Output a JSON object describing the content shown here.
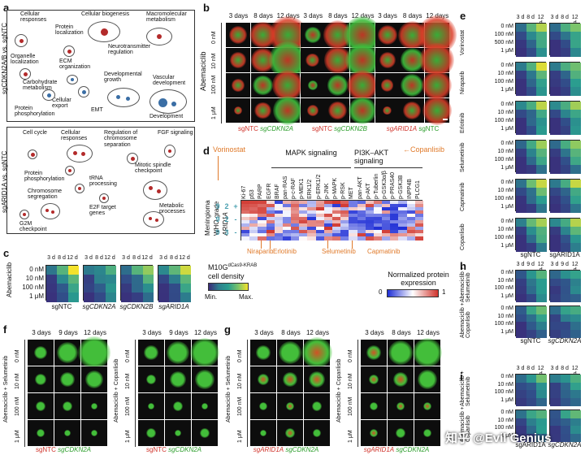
{
  "panels": {
    "a": "a",
    "b": "b",
    "c": "c",
    "d": "d",
    "e": "e",
    "f": "f",
    "g": "g",
    "h": "h",
    "i": "i"
  },
  "panel_a": {
    "top_side_label": "sgCDKN2A/B vs. sgNTC",
    "bottom_side_label": "sgARID1A vs. sgNTC",
    "top_terms": [
      "Cellular responses",
      "Protein localization",
      "Cellular biogenesis",
      "Macromolecular metabolism",
      "Organelle localization",
      "ECM organization",
      "Neurotransmitter regulation",
      "Carbohydrate metabolism",
      "Developmental growth",
      "Cellular export",
      "Vascular development",
      "Protein phosphorylation",
      "EMT",
      "Development"
    ],
    "bottom_terms": [
      "Cell cycle",
      "Cellular responses",
      "Regulation of chromosome separation",
      "FGF signaling",
      "Protein phosphorylation",
      "tRNA processing",
      "Mitotic spindle checkpoint",
      "Chromosome segregation",
      "E2F target genes",
      "Metabolic processes",
      "G2M checkpoint"
    ]
  },
  "panel_b": {
    "timepoints": [
      "3 days",
      "8 days",
      "12 days",
      "3 days",
      "8 days",
      "12 days",
      "3 days",
      "8 days",
      "12 days"
    ],
    "drug": "Abemaciclib",
    "doses": [
      "0 nM",
      "10 nM",
      "100 nM",
      "1 μM"
    ],
    "groups_red": [
      "sgNTC",
      "sgNTC",
      "sgARID1A"
    ],
    "groups_green": [
      "sgCDKN2A",
      "sgCDKN2B",
      "sgNTC"
    ]
  },
  "panel_c": {
    "drug": "Abemaciclib",
    "doses": [
      "0 nM",
      "10 nM",
      "100 nM",
      "1 μM"
    ],
    "times": [
      "3 d",
      "8 d",
      "12 d"
    ],
    "groups": [
      "sgNTC",
      "sgCDKN2A",
      "sgCDKN2B",
      "sgARID1A"
    ],
    "legend_title": "M10G",
    "legend_super": "dCas9-KRAB",
    "legend_sub": "cell density",
    "legend_min": "Min.",
    "legend_max": "Max."
  },
  "panel_d": {
    "left_labels": [
      "Meningioma",
      "WHO grade",
      "ARID1A"
    ],
    "grades": [
      "9",
      "2",
      "+",
      "9",
      "2",
      "-",
      "9",
      "3",
      "-"
    ],
    "markers": [
      "Ki-67",
      "p53",
      "PARP",
      "EGFR",
      "BRAF",
      "pan-RAS",
      "p-c-RAF",
      "p-MEK1",
      "ERK1/2",
      "p-ERK1/2",
      "p-JNK",
      "p-MAPK",
      "p-RSK",
      "MET",
      "pan-AKT",
      "p-AKT",
      "p-Tuberlin",
      "p-GSK3α/β",
      "p-PRAS40",
      "p-GSK3B",
      "INPP4B",
      "PLCG1"
    ],
    "mapk_label": "MAPK signaling",
    "pi3k_label": "PI3K–AKT signaling",
    "vorinostat": "Vorinostat",
    "copanlisib": "Copanlisib",
    "bottom_drugs": [
      "Niraparib",
      "Erlotinib",
      "Selumetinib",
      "Capmatinib"
    ],
    "legend_title": "Normalized protein expression",
    "legend_min": "0",
    "legend_max": "1"
  },
  "panel_e": {
    "times": [
      "3 d",
      "8 d",
      "12 d"
    ],
    "drugs": [
      "Vorinostat",
      "Niraparib",
      "Erlotinib",
      "Selumetinib",
      "Capmatinib",
      "Copanlisib"
    ],
    "doses": [
      "0 nM",
      "10 nM",
      "100 nM",
      "1 μM"
    ],
    "doses_vorinostat": [
      "0 nM",
      "100 nM",
      "500 nM",
      "1 μM"
    ],
    "groups": [
      "sgNTC",
      "sgARID1A"
    ]
  },
  "panel_f": {
    "left_drug": "Abemaciclib + Selumetinib",
    "right_drug": "Abemaciclib + Copanlisib",
    "times": [
      "3 days",
      "9 days",
      "12 days"
    ],
    "doses": [
      "0 nM",
      "10 nM",
      "100 nM",
      "1 μM"
    ],
    "red": "sgNTC",
    "green": "sgCDKN2A"
  },
  "panel_g": {
    "left_drug": "Abemaciclib + Selumetinib",
    "right_drug": "Abemaciclib + Copanlisib",
    "times": [
      "3 days",
      "8 days",
      "12 days"
    ],
    "doses": [
      "0 nM",
      "10 nM",
      "100 nM",
      "1 μM"
    ],
    "red": "sgARID1A",
    "green": "sgCDKN2A"
  },
  "panel_h": {
    "times": [
      "3 d",
      "9 d",
      "12 d"
    ],
    "drugs": [
      "Abemaciclib + Selumetinib",
      "Abemaciclib + Copanlisib"
    ],
    "doses": [
      "0 nM",
      "10 nM",
      "100 nM",
      "1 μM"
    ],
    "groups": [
      "sgNTC",
      "sgCDKN2A"
    ]
  },
  "panel_i": {
    "times": [
      "3 d",
      "8 d",
      "12 d"
    ],
    "drugs": [
      "Abemaciclib + Selumetinib",
      "Abemaciclib + Copanlisib"
    ],
    "doses": [
      "0 nM",
      "10 nM",
      "100 nM",
      "1 μM"
    ],
    "groups": [
      "sgARID1A",
      "sgCDKN2A"
    ]
  },
  "watermark": "知乎 @Evil Genius",
  "colors": {
    "viridis_low": "#3b2a78",
    "viridis_mid": "#2a9d8f",
    "viridis_high": "#f4e22c",
    "red": "#d0342c",
    "blue": "#1f2fd6",
    "green": "#2a9d2a",
    "orange": "#e07a2a"
  }
}
